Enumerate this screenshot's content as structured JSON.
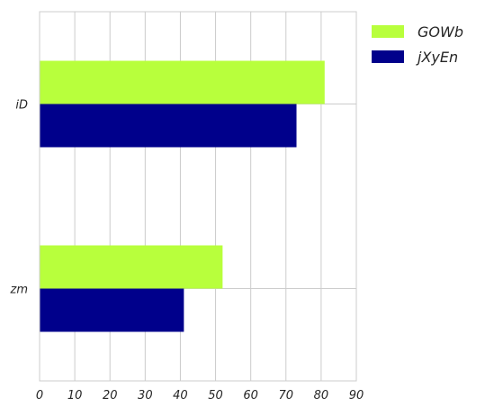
{
  "chart_data": {
    "type": "bar",
    "orientation": "horizontal",
    "categories": [
      "zm",
      "iD"
    ],
    "series": [
      {
        "name": "GOWb",
        "values": [
          52,
          81
        ],
        "color": "#b8ff3c"
      },
      {
        "name": "jXyEn",
        "values": [
          41,
          73
        ],
        "color": "#00008b"
      }
    ],
    "xlim": [
      0,
      90
    ],
    "xticks": [
      "0",
      "10",
      "20",
      "30",
      "40",
      "50",
      "60",
      "70",
      "80",
      "90"
    ],
    "title": "",
    "xlabel": "",
    "ylabel": "",
    "grid": true,
    "legend_position": "top-right"
  }
}
